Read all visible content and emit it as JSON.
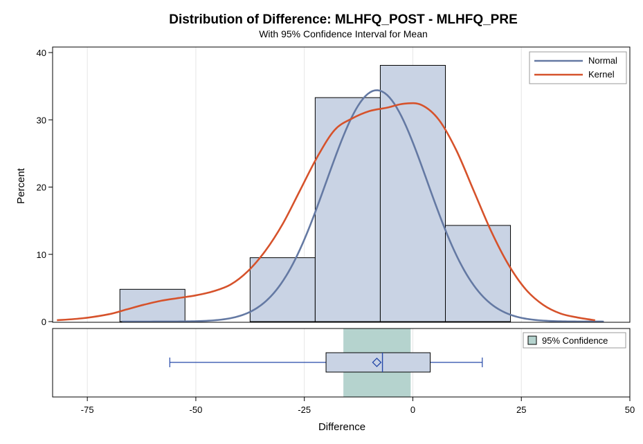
{
  "chart_data": {
    "type": "bar",
    "title": "Distribution of Difference: MLHFQ_POST - MLHFQ_PRE",
    "subtitle": "With 95% Confidence Interval for Mean",
    "xlabel": "Difference",
    "ylabel": "Percent",
    "xlim": [
      -83,
      50
    ],
    "ylim": [
      0,
      40
    ],
    "x_ticks": [
      -75,
      -50,
      -25,
      0,
      25,
      50
    ],
    "x_tick_labels": [
      "-75",
      "-50",
      "-25",
      "0",
      "25",
      "50"
    ],
    "y_ticks": [
      0,
      10,
      20,
      30,
      40
    ],
    "y_tick_labels": [
      "0",
      "10",
      "20",
      "30",
      "40"
    ],
    "grid": true,
    "histogram": {
      "bin_width": 15,
      "bins": [
        {
          "x0": -67.5,
          "x1": -52.5,
          "value": 4.8
        },
        {
          "x0": -52.5,
          "x1": -37.5,
          "value": 0
        },
        {
          "x0": -37.5,
          "x1": -22.5,
          "value": 9.5
        },
        {
          "x0": -22.5,
          "x1": -7.5,
          "value": 33.3
        },
        {
          "x0": -7.5,
          "x1": 7.5,
          "value": 38.1
        },
        {
          "x0": 7.5,
          "x1": 22.5,
          "value": 14.3
        }
      ],
      "fill": "#c9d3e4",
      "stroke": "#000000"
    },
    "series": [
      {
        "name": "Normal",
        "color": "#6479a3",
        "type": "normal",
        "mean": -8.3,
        "sd": 11.6,
        "peak": 34.4,
        "x_range": [
          -67,
          44
        ]
      },
      {
        "name": "Kernel",
        "color": "#d6522b",
        "type": "kernel",
        "x": [
          -82,
          -76,
          -70,
          -66,
          -62,
          -58,
          -54,
          -50,
          -46,
          -42,
          -38,
          -34,
          -30,
          -26,
          -22,
          -18,
          -14,
          -10,
          -6,
          -2,
          2,
          6,
          10,
          14,
          18,
          22,
          26,
          30,
          34,
          38,
          42
        ],
        "y": [
          0.2,
          0.5,
          1.1,
          1.8,
          2.5,
          3.1,
          3.5,
          3.9,
          4.5,
          5.5,
          7.5,
          10.5,
          14.5,
          19.5,
          24.5,
          28.5,
          30.2,
          31.3,
          31.8,
          32.4,
          32.2,
          30,
          25.5,
          19.5,
          13.5,
          8.5,
          4.8,
          2.5,
          1.2,
          0.6,
          0.2
        ]
      }
    ],
    "legend": {
      "position": "top-right",
      "entries": [
        "Normal",
        "Kernel"
      ]
    },
    "boxplot": {
      "whisker_low": -56,
      "q1": -20,
      "median": -7,
      "mean": -8.3,
      "q3": 4,
      "whisker_high": 16,
      "fill": "#c9d3e4",
      "line_color": "#2448a8"
    },
    "confidence_interval": {
      "label": "95% Confidence",
      "low": -16,
      "high": -0.5,
      "color": "#b5d3ce",
      "legend_position": "top-right"
    }
  }
}
